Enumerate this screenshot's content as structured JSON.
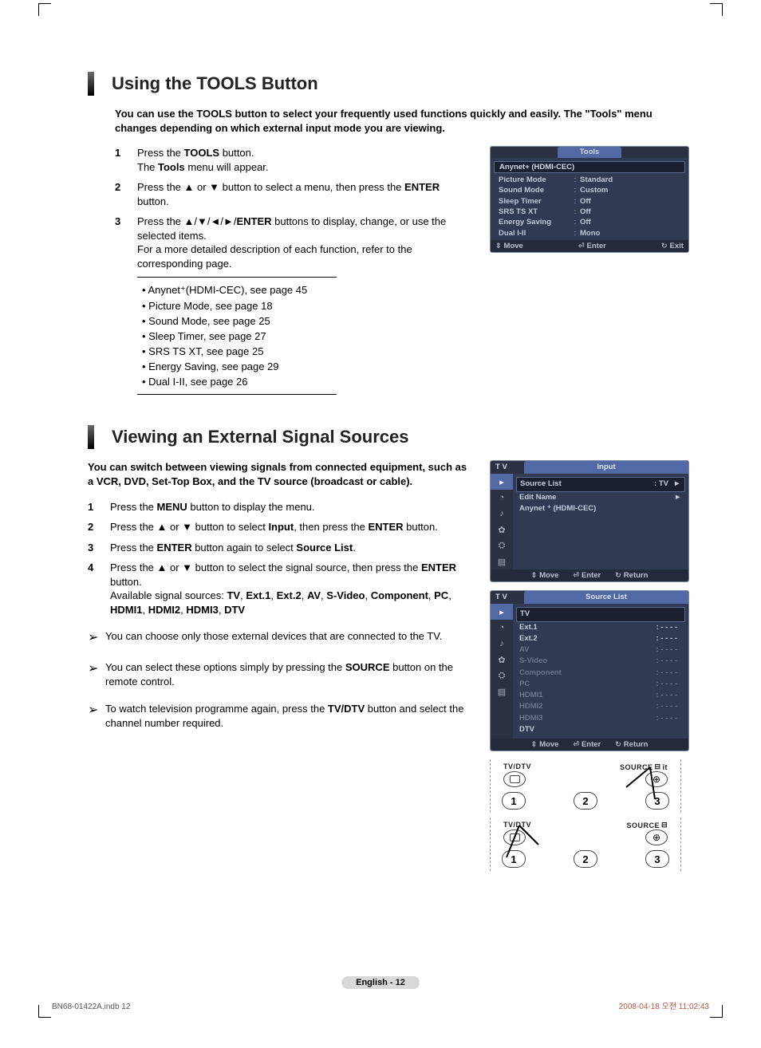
{
  "section1": {
    "title": "Using the TOOLS Button",
    "intro": "You can use the TOOLS button to select your frequently used functions quickly and easily. The \"Tools\" menu changes depending on which external input mode you are viewing.",
    "steps": [
      {
        "num": "1",
        "html": "Press the <strong>TOOLS</strong> button.<br>The <strong>Tools</strong> menu will appear."
      },
      {
        "num": "2",
        "html": "Press the ▲ or ▼ button to select a menu, then press the <strong>ENTER</strong> button."
      },
      {
        "num": "3",
        "html": "Press the ▲/▼/◄/►/<strong>ENTER</strong> buttons to display, change, or use the selected items.<br>For a more detailed description of each function, refer to the corresponding page."
      }
    ],
    "refs": [
      "Anynet⁺(HDMI-CEC), see page 45",
      "Picture Mode, see page 18",
      "Sound Mode, see page 25",
      "Sleep Timer, see page 27",
      "SRS TS XT, see page 25",
      "Energy Saving, see page 29",
      "Dual I-II, see page 26"
    ]
  },
  "osd_tools": {
    "title": "Tools",
    "highlight": "Anynet+ (HDMI-CEC)",
    "rows": [
      {
        "label": "Picture Mode",
        "value": "Standard"
      },
      {
        "label": "Sound Mode",
        "value": "Custom"
      },
      {
        "label": "Sleep Timer",
        "value": "Off"
      },
      {
        "label": "SRS TS XT",
        "value": "Off"
      },
      {
        "label": "Energy Saving",
        "value": "Off"
      },
      {
        "label": "Dual I-II",
        "value": "Mono"
      }
    ],
    "footer": {
      "move": "Move",
      "enter": "Enter",
      "exit": "Exit"
    }
  },
  "section2": {
    "title": "Viewing an External Signal Sources",
    "intro": "You can switch between viewing signals from connected equipment, such as a VCR, DVD, Set-Top Box, and the TV source (broadcast or cable).",
    "steps": [
      {
        "num": "1",
        "html": "Press the <strong>MENU</strong> button to display the menu."
      },
      {
        "num": "2",
        "html": "Press the ▲ or ▼ button to select <strong>Input</strong>, then press the <strong>ENTER</strong> button."
      },
      {
        "num": "3",
        "html": "Press the <strong>ENTER</strong> button again to select <strong>Source List</strong>."
      },
      {
        "num": "4",
        "html": "Press the ▲ or ▼ button to select the signal source, then press the <strong>ENTER</strong> button.<br>Available signal sources: <strong>TV</strong>, <strong>Ext.1</strong>, <strong>Ext.2</strong>, <strong>AV</strong>, <strong>S-Video</strong>, <strong>Component</strong>, <strong>PC</strong>, <strong>HDMI1</strong>, <strong>HDMI2</strong>, <strong>HDMI3</strong>, <strong>DTV</strong>"
      }
    ],
    "notes": [
      "You can choose only those external devices that are connected to the TV.",
      "You can select these options simply by pressing the <strong>SOURCE</strong> button on the remote control.",
      "To watch television programme again, press the <strong>TV/DTV</strong> button and select the channel number required."
    ]
  },
  "osd_input": {
    "tv": "T V",
    "title": "Input",
    "rows": [
      {
        "label": "Source List",
        "value": ": TV",
        "hl": true,
        "arrow": true
      },
      {
        "label": "Edit Name",
        "value": "",
        "arrow": true
      },
      {
        "label": "Anynet ⁺ (HDMI-CEC)",
        "value": ""
      }
    ],
    "footer": {
      "move": "Move",
      "enter": "Enter",
      "return": "Return"
    }
  },
  "osd_source": {
    "tv": "T V",
    "title": "Source List",
    "rows": [
      {
        "label": "TV",
        "value": "",
        "hl": true
      },
      {
        "label": "Ext.1",
        "value": ": - - - -"
      },
      {
        "label": "Ext.2",
        "value": ": - - - -"
      },
      {
        "label": "AV",
        "value": ": - - - -",
        "dim": true
      },
      {
        "label": "S-Video",
        "value": ": - - - -",
        "dim": true
      },
      {
        "label": "Component",
        "value": ": - - - -",
        "dim": true
      },
      {
        "label": "PC",
        "value": ": - - - -",
        "dim": true
      },
      {
        "label": "HDMI1",
        "value": ": - - - -",
        "dim": true
      },
      {
        "label": "HDMI2",
        "value": ": - - - -",
        "dim": true
      },
      {
        "label": "HDMI3",
        "value": ": - - - -",
        "dim": true
      },
      {
        "label": "DTV",
        "value": ""
      }
    ],
    "footer": {
      "move": "Move",
      "enter": "Enter",
      "return": "Return"
    }
  },
  "remote": {
    "label_tvdtv": "TV/DTV",
    "label_source": "SOURCE",
    "nums": [
      "1",
      "2",
      "3"
    ]
  },
  "footer": {
    "page": "English - 12",
    "bl": "BN68-01422A.indb   12",
    "br": "2008-04-18   오전 11:02:43"
  }
}
